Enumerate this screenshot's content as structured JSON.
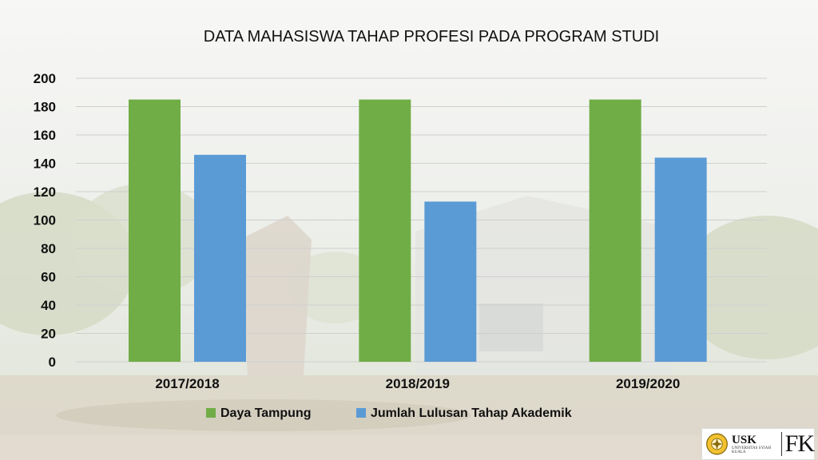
{
  "chart_data": {
    "type": "bar",
    "title": "DATA MAHASISWA TAHAP PROFESI PADA PROGRAM STUDI",
    "categories": [
      "2017/2018",
      "2018/2019",
      "2019/2020"
    ],
    "series": [
      {
        "name": "Daya Tampung",
        "values": [
          185,
          185,
          185
        ],
        "color": "#70AD47"
      },
      {
        "name": "Jumlah Lulusan Tahap Akademik",
        "values": [
          146,
          113,
          144
        ],
        "color": "#5B9BD5"
      }
    ],
    "ylim": [
      0,
      200
    ],
    "yticks": [
      0,
      20,
      40,
      60,
      80,
      100,
      120,
      140,
      160,
      180,
      200
    ],
    "grid": true,
    "legend_position": "bottom"
  },
  "logo": {
    "name": "USK",
    "subtitle": "UNIVERSITAS SYIAH KUALA",
    "faculty": "FK"
  }
}
